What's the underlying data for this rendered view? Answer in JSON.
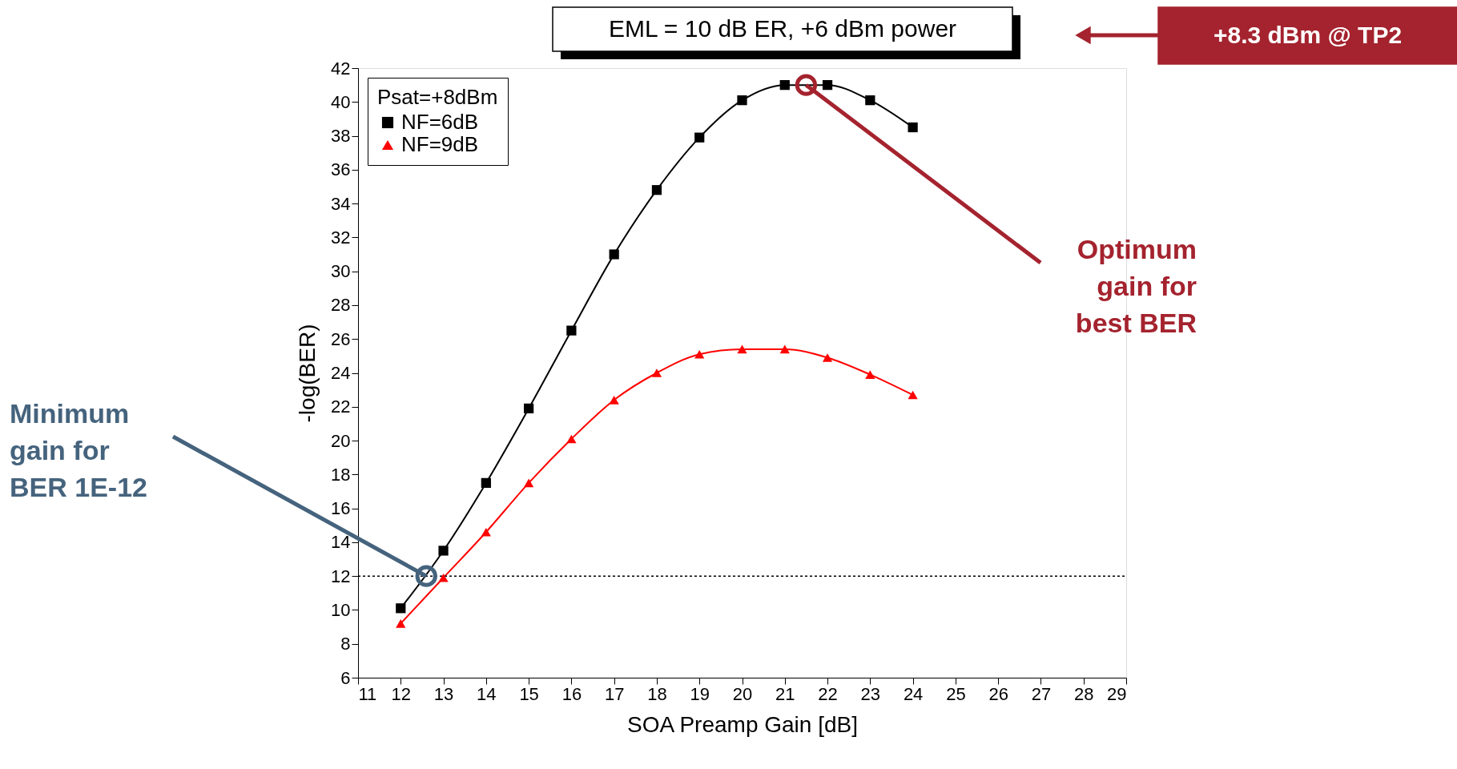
{
  "chart_data": {
    "type": "line",
    "xlabel": "SOA Preamp Gain [dB]",
    "ylabel": "-log(BER)",
    "legend_title": "Psat=+8dBm",
    "legend": "top left",
    "marker": "square",
    "line_style": "solid",
    "grid": false,
    "xlim": [
      11,
      29
    ],
    "xticks": [
      11,
      12,
      13,
      14,
      15,
      16,
      17,
      18,
      19,
      20,
      21,
      22,
      23,
      24,
      25,
      26,
      27,
      28,
      29
    ],
    "ylim": [
      6,
      42
    ],
    "yticks": [
      6,
      8,
      10,
      12,
      14,
      16,
      18,
      20,
      22,
      24,
      26,
      28,
      30,
      32,
      34,
      36,
      38,
      40,
      42
    ],
    "x": [
      12,
      13,
      14,
      15,
      16,
      17,
      18,
      19,
      20,
      21,
      22,
      23,
      24
    ],
    "series": [
      {
        "name": "NF=6dB",
        "color": "#000000",
        "marker": "square",
        "values": [
          10.1,
          13.5,
          17.5,
          21.9,
          26.5,
          31.0,
          34.8,
          37.9,
          40.1,
          41.0,
          41.0,
          40.1,
          38.5
        ]
      },
      {
        "name": "NF=9dB",
        "color": "#ff0000",
        "marker": "triangle",
        "values": [
          9.2,
          11.9,
          14.6,
          17.5,
          20.1,
          22.4,
          24.0,
          25.1,
          25.4,
          25.4,
          24.9,
          23.9,
          22.7
        ]
      }
    ],
    "ref_lines": [
      {
        "axis": "y",
        "value": 12,
        "color": "#000000",
        "line_style": "dotted"
      }
    ],
    "annotations": [
      "EML = 10 dB ER, +6 dBm power",
      "+8.3 dBm @ TP2",
      {
        "text": "Optimum\ngain for\nbest BER",
        "x": 21.5,
        "y": 41
      },
      {
        "text": "Minimum\ngain for\nBER 1E-12",
        "x": 12.6,
        "y": 12
      }
    ]
  }
}
